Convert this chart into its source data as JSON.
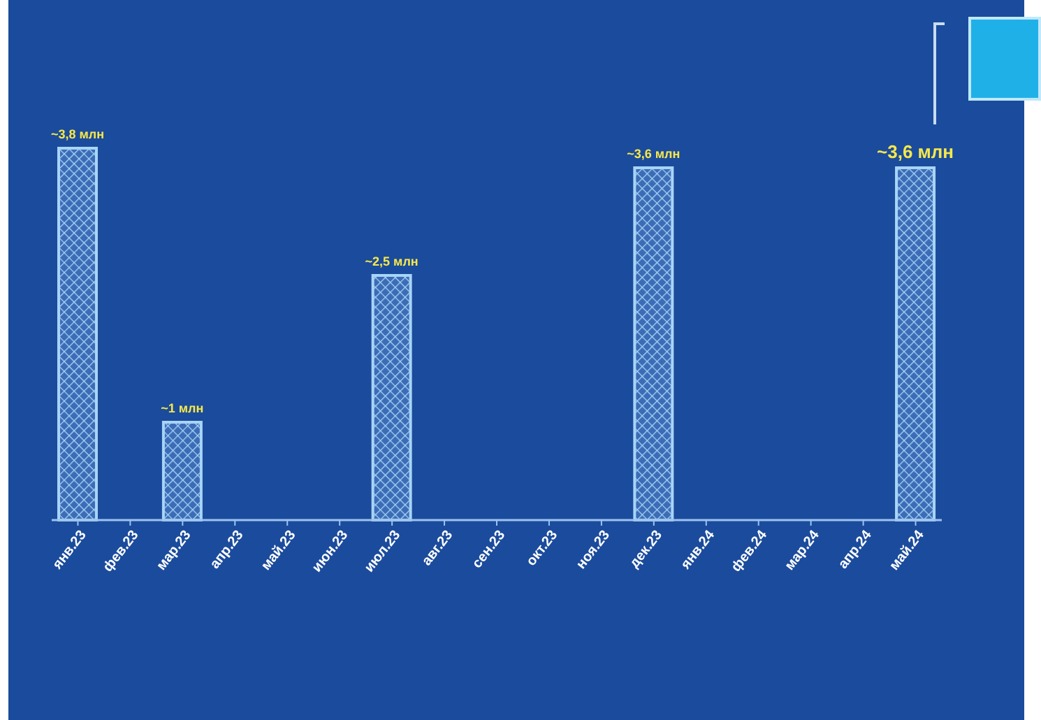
{
  "chart_data": {
    "type": "bar",
    "categories": [
      "янв.23",
      "фев.23",
      "мар.23",
      "апр.23",
      "май.23",
      "июн.23",
      "июл.23",
      "авг.23",
      "сен.23",
      "окт.23",
      "ноя.23",
      "дек.23",
      "янв.24",
      "фев.24",
      "мар.24",
      "апр.24",
      "май.24"
    ],
    "values": [
      3.8,
      null,
      1,
      null,
      null,
      null,
      2.5,
      null,
      null,
      null,
      null,
      3.6,
      null,
      null,
      null,
      null,
      3.6
    ],
    "value_labels": [
      "~3,8 млн",
      null,
      "~1 млн",
      null,
      null,
      null,
      "~2,5 млн",
      null,
      null,
      null,
      null,
      "~3,6 млн",
      null,
      null,
      null,
      null,
      "~3,6 млн"
    ],
    "color": "#a8d4f7",
    "tick_labels": "x"
  }
}
